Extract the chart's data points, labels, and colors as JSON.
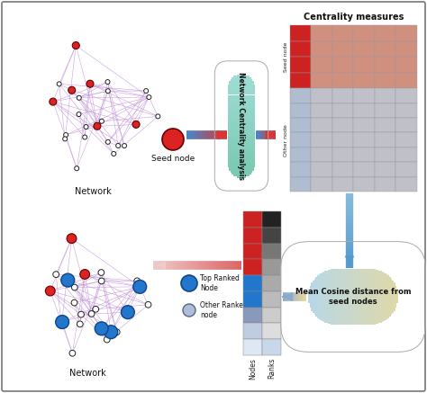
{
  "bg_color": "#ffffff",
  "border_color": "#888888",
  "centrality_title": "Centrality measures",
  "pill_top_label": "Network Centrality analysis",
  "pill_bottom_label": "Mean Cosine distance from\nseed nodes",
  "seed_node_label": "Seed node",
  "network_label_top": "Network",
  "network_label_bottom": "Network",
  "top_ranked_label": "Top Ranked\nNode",
  "other_ranked_label": "Other Ranked\nnode",
  "nodes_label": "Nodes",
  "ranks_label": "Ranks",
  "network_edge_color": "#c090d8",
  "seed_node_color": "#dd2222",
  "top_ranked_color": "#2277cc",
  "other_ranked_color": "#b0bdd8",
  "pill_top_c1": "#a0ddd5",
  "pill_top_c2": "#78c8b0",
  "pill_bottom_c1": "#b8d8e8",
  "pill_bottom_c2": "#e0d8a8",
  "arrow_red1": "#4488cc",
  "arrow_red2": "#dd3333",
  "seed_rows_color": "#d09080",
  "other_rows_color": "#c0c0c8",
  "mat_red_col": "#cc2222",
  "mat_blue_col": "#b0bcd0",
  "node_colors": [
    "#cc2222",
    "#cc2222",
    "#cc2222",
    "#cc2222",
    "#2277cc",
    "#2277cc",
    "#8899bb",
    "#c0cce0",
    "#dde8f4"
  ],
  "rank_colors": [
    "#222222",
    "#444444",
    "#777777",
    "#999999",
    "#aaaaaa",
    "#bbbbbb",
    "#cccccc",
    "#dddddd",
    "#c8d8ea"
  ]
}
